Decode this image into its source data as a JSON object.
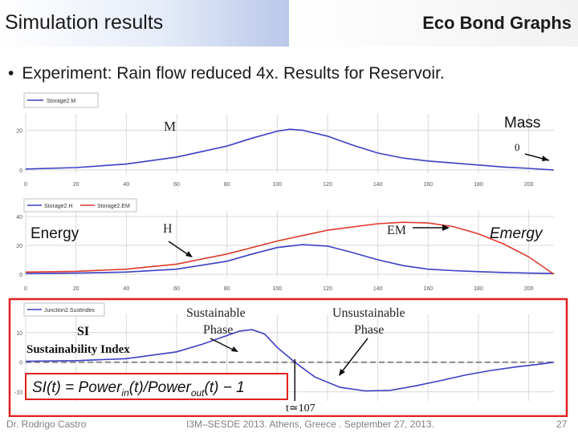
{
  "header": {
    "title": "Simulation results",
    "brand": "Eco Bond Graphs"
  },
  "bullet": "Experiment: Rain flow reduced 4x. Results for Reservoir.",
  "panels": {
    "mass": {
      "legend": "Storage2.M",
      "curve_label": "M",
      "side_label": "Mass",
      "zero_label": "0"
    },
    "energy": {
      "legend_h": "Storage2.H",
      "legend_em": "Storage2.EM",
      "h_label": "H",
      "em_label": "EM",
      "left_label": "Energy",
      "right_label": "Emergy"
    },
    "si": {
      "legend": "Junction2.SustIndex",
      "si_label": "SI",
      "si_full": "Sustainability Index",
      "sustainable": "Sustainable",
      "sustainable2": "Phase",
      "unsustainable": "Unsustainable",
      "unsustainable2": "Phase",
      "t_label": "t≃107"
    }
  },
  "formula": {
    "lhs": "SI(t) = Power",
    "in_sub": "in",
    "mid": "(t)/Power",
    "out_sub": "out",
    "rhs": "(t) − 1"
  },
  "footer": {
    "author": "Dr. Rodrigo Castro",
    "event": "I3M–SESDE 2013. Athens, Greece . September 27, 2013.",
    "page": "27"
  },
  "colors": {
    "blue_series": "#3b3fc4",
    "red_series": "#e0392b",
    "highlight_box": "#e02020",
    "grid": "#d9d9d9"
  },
  "chart_data": [
    {
      "type": "line",
      "xlim": [
        0,
        210
      ],
      "ylim": [
        0,
        25
      ],
      "yticks": [
        0,
        20
      ],
      "xticks": [
        0,
        20,
        40,
        60,
        80,
        100,
        120,
        140,
        160,
        180,
        200
      ],
      "grid": true,
      "legend": "top-left",
      "series": [
        {
          "name": "Storage2.M",
          "color": "#3b3fc4",
          "x": [
            0,
            20,
            40,
            60,
            80,
            90,
            100,
            105,
            110,
            120,
            130,
            140,
            150,
            160,
            170,
            180,
            190,
            200,
            210
          ],
          "y": [
            0.5,
            1.2,
            3,
            6.5,
            12,
            16,
            19.5,
            20.5,
            20,
            17,
            12.5,
            8.5,
            6,
            4.5,
            3.5,
            2.5,
            1.5,
            0.8,
            0
          ]
        }
      ]
    },
    {
      "type": "line",
      "xlim": [
        0,
        210
      ],
      "ylim": [
        0,
        40
      ],
      "yticks": [
        0,
        20,
        40
      ],
      "xticks": [
        0,
        20,
        40,
        60,
        80,
        100,
        120,
        140,
        160,
        180,
        200
      ],
      "grid": true,
      "legend": "top-left",
      "series": [
        {
          "name": "Storage2.H",
          "color": "#3b3fc4",
          "x": [
            0,
            20,
            40,
            60,
            80,
            90,
            100,
            110,
            120,
            130,
            140,
            150,
            160,
            170,
            180,
            190,
            200,
            210
          ],
          "y": [
            0.5,
            0.8,
            1.5,
            3.5,
            9,
            14,
            18.5,
            20.5,
            19.5,
            15,
            10,
            6,
            3.5,
            2.5,
            1.8,
            1.2,
            0.8,
            0.5
          ]
        },
        {
          "name": "Storage2.EM",
          "color": "#e0392b",
          "x": [
            0,
            20,
            40,
            60,
            80,
            100,
            120,
            140,
            150,
            160,
            170,
            180,
            190,
            200,
            210
          ],
          "y": [
            1.5,
            2,
            3.5,
            7,
            14,
            23,
            30.5,
            35,
            36,
            35.5,
            33,
            28,
            21,
            12,
            0
          ]
        }
      ]
    },
    {
      "type": "line",
      "xlim": [
        0,
        210
      ],
      "ylim": [
        -12,
        14
      ],
      "yticks": [
        -10,
        0,
        10
      ],
      "xticks": [
        0,
        20,
        40,
        60,
        80,
        100,
        120,
        140,
        160,
        180,
        200
      ],
      "grid": true,
      "legend": "top-left",
      "series": [
        {
          "name": "Junction2.SustIndex",
          "color": "#3b3fc4",
          "x": [
            0,
            20,
            40,
            60,
            70,
            80,
            85,
            90,
            95,
            100,
            107,
            115,
            125,
            135,
            145,
            155,
            165,
            175,
            185,
            195,
            205,
            210
          ],
          "y": [
            0.3,
            0.5,
            1.2,
            3.5,
            6,
            9,
            10.5,
            11,
            9.5,
            5,
            0,
            -5,
            -8.5,
            -9.7,
            -9.5,
            -8,
            -6.2,
            -4.3,
            -2.8,
            -1.6,
            -0.6,
            0
          ]
        }
      ]
    }
  ]
}
